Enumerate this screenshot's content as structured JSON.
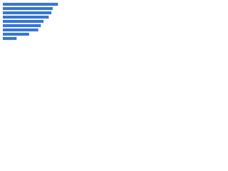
{
  "chart_data": {
    "type": "hbar",
    "categories": [
      null,
      null,
      null,
      null,
      null,
      null,
      null,
      null,
      null
    ],
    "values": [
      84,
      76,
      74,
      70,
      62,
      58,
      54,
      40,
      21
    ],
    "color": "#3a78d4",
    "xlim": [
      0,
      100
    ]
  }
}
